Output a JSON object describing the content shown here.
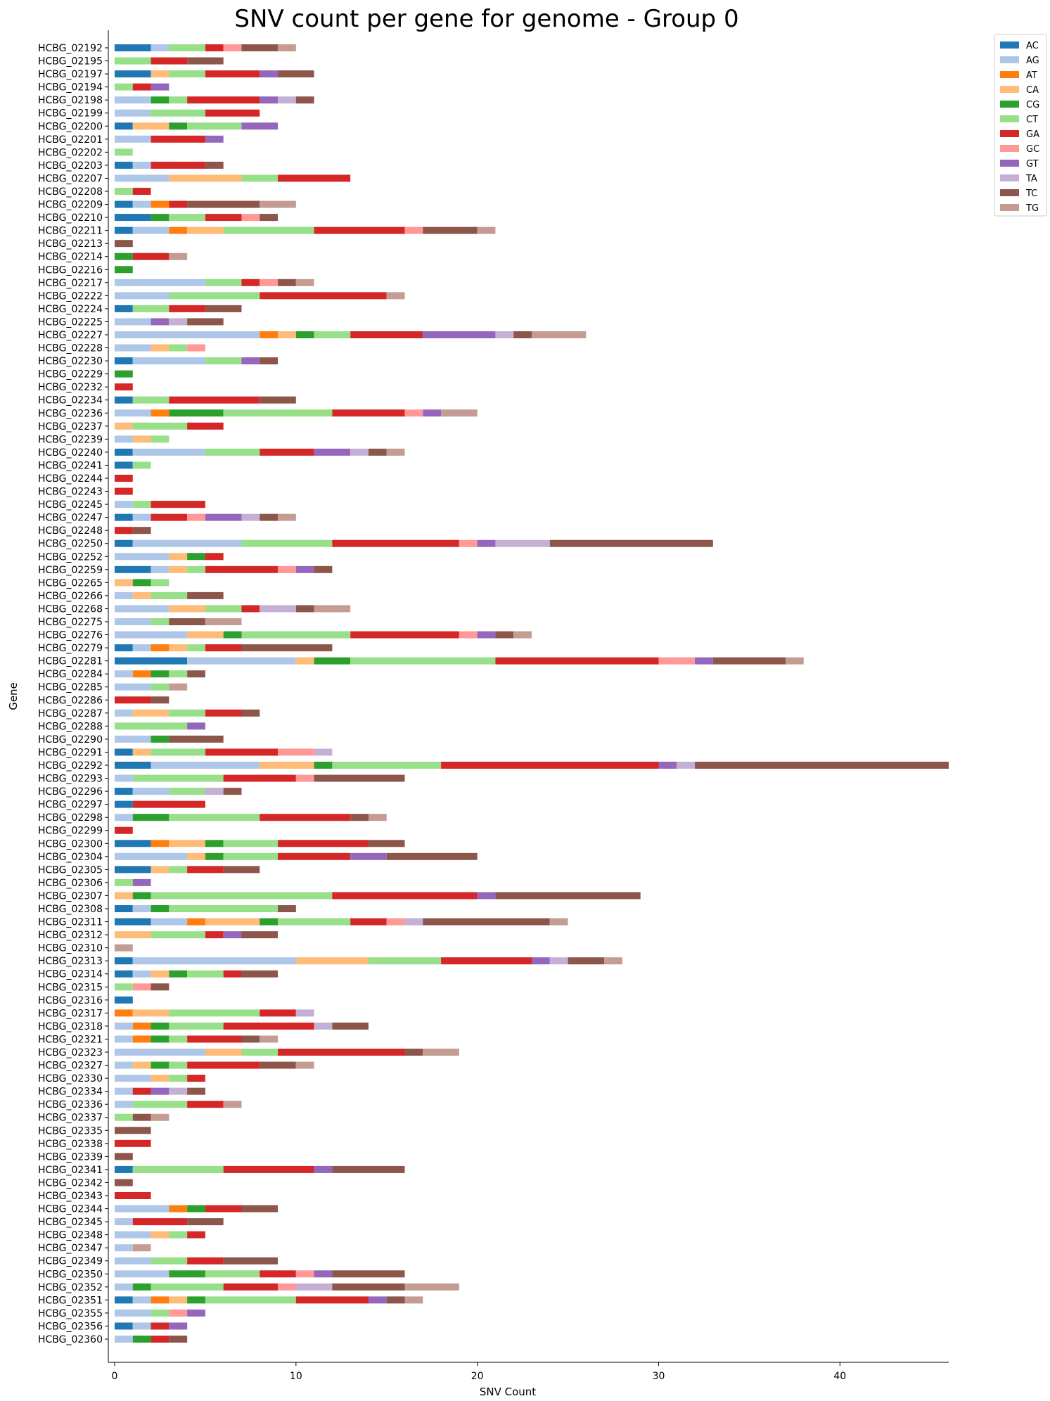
{
  "chart_data": {
    "type": "bar",
    "orientation": "horizontal",
    "stacked": true,
    "title": "SNV count per gene for genome - Group 0",
    "xlabel": "SNV Count",
    "ylabel": "Gene",
    "xlim": [
      0,
      46
    ],
    "xticks": [
      0,
      10,
      20,
      30,
      40
    ],
    "grid": false,
    "legend_position": "top-right",
    "series_names": [
      "AC",
      "AG",
      "AT",
      "CA",
      "CG",
      "CT",
      "GA",
      "GC",
      "GT",
      "TA",
      "TC",
      "TG"
    ],
    "colors": {
      "AC": "#1f77b4",
      "AG": "#aec7e8",
      "AT": "#ff7f0e",
      "CA": "#ffbb78",
      "CG": "#2ca02c",
      "CT": "#98df8a",
      "GA": "#d62728",
      "GC": "#ff9896",
      "GT": "#9467bd",
      "TA": "#c5b0d5",
      "TC": "#8c564b",
      "TG": "#c49c94"
    },
    "genes": [
      {
        "name": "HCBG_02192",
        "AC": 2,
        "AG": 1,
        "CT": 2,
        "GA": 1,
        "GC": 1,
        "TC": 2,
        "TG": 1
      },
      {
        "name": "HCBG_02195",
        "CT": 2,
        "GA": 2,
        "TC": 2
      },
      {
        "name": "HCBG_02197",
        "AC": 2,
        "CA": 1,
        "CT": 2,
        "GA": 3,
        "GT": 1,
        "TC": 2
      },
      {
        "name": "HCBG_02194",
        "CT": 1,
        "GA": 1,
        "GT": 1
      },
      {
        "name": "HCBG_02198",
        "AG": 2,
        "CG": 1,
        "CT": 1,
        "GA": 4,
        "GT": 1,
        "TA": 1,
        "TC": 1
      },
      {
        "name": "HCBG_02199",
        "AG": 2,
        "CT": 3,
        "GA": 3
      },
      {
        "name": "HCBG_02200",
        "AC": 1,
        "CA": 2,
        "CG": 1,
        "CT": 3,
        "GT": 2
      },
      {
        "name": "HCBG_02201",
        "AG": 2,
        "GA": 3,
        "GT": 1
      },
      {
        "name": "HCBG_02202",
        "CT": 1
      },
      {
        "name": "HCBG_02203",
        "AC": 1,
        "AG": 1,
        "GA": 3,
        "TC": 1
      },
      {
        "name": "HCBG_02207",
        "AG": 3,
        "CA": 4,
        "CT": 2,
        "GA": 4
      },
      {
        "name": "HCBG_02208",
        "CT": 1,
        "GA": 1
      },
      {
        "name": "HCBG_02209",
        "AC": 1,
        "AG": 1,
        "AT": 1,
        "GA": 1,
        "TC": 4,
        "TG": 2
      },
      {
        "name": "HCBG_02210",
        "AC": 2,
        "CG": 1,
        "CT": 2,
        "GA": 2,
        "GC": 1,
        "TC": 1
      },
      {
        "name": "HCBG_02211",
        "AC": 1,
        "AG": 2,
        "AT": 1,
        "CA": 2,
        "CT": 5,
        "GA": 5,
        "GC": 1,
        "TC": 3,
        "TG": 1
      },
      {
        "name": "HCBG_02213",
        "TC": 1
      },
      {
        "name": "HCBG_02214",
        "CG": 1,
        "GA": 2,
        "TG": 1
      },
      {
        "name": "HCBG_02216",
        "CG": 1
      },
      {
        "name": "HCBG_02217",
        "AG": 5,
        "CT": 2,
        "GA": 1,
        "GC": 1,
        "TC": 1,
        "TG": 1
      },
      {
        "name": "HCBG_02222",
        "AG": 3,
        "CT": 5,
        "GA": 7,
        "TG": 1
      },
      {
        "name": "HCBG_02224",
        "AC": 1,
        "CT": 2,
        "GA": 2,
        "TC": 2
      },
      {
        "name": "HCBG_02225",
        "AG": 2,
        "GT": 1,
        "TA": 1,
        "TC": 2
      },
      {
        "name": "HCBG_02227",
        "AG": 8,
        "AT": 1,
        "CA": 1,
        "CG": 1,
        "CT": 2,
        "GA": 4,
        "GT": 4,
        "TA": 1,
        "TC": 1,
        "TG": 3
      },
      {
        "name": "HCBG_02228",
        "AG": 2,
        "CA": 1,
        "CT": 1,
        "GC": 1
      },
      {
        "name": "HCBG_02230",
        "AC": 1,
        "AG": 4,
        "CT": 2,
        "GT": 1,
        "TC": 1
      },
      {
        "name": "HCBG_02229",
        "CG": 1
      },
      {
        "name": "HCBG_02232",
        "GA": 1
      },
      {
        "name": "HCBG_02234",
        "AC": 1,
        "CT": 2,
        "GA": 5,
        "TC": 2
      },
      {
        "name": "HCBG_02236",
        "AG": 2,
        "AT": 1,
        "CG": 3,
        "CT": 6,
        "GA": 4,
        "GC": 1,
        "GT": 1,
        "TG": 2
      },
      {
        "name": "HCBG_02237",
        "CA": 1,
        "CT": 3,
        "GA": 2
      },
      {
        "name": "HCBG_02239",
        "AG": 1,
        "CA": 1,
        "CT": 1
      },
      {
        "name": "HCBG_02240",
        "AC": 1,
        "AG": 4,
        "CT": 3,
        "GA": 3,
        "GT": 2,
        "TA": 1,
        "TC": 1,
        "TG": 1
      },
      {
        "name": "HCBG_02241",
        "AC": 1,
        "CT": 1
      },
      {
        "name": "HCBG_02244",
        "GA": 1
      },
      {
        "name": "HCBG_02243",
        "GA": 1
      },
      {
        "name": "HCBG_02245",
        "AG": 1,
        "CT": 1,
        "GA": 3
      },
      {
        "name": "HCBG_02247",
        "AC": 1,
        "AG": 1,
        "GA": 2,
        "GC": 1,
        "GT": 2,
        "TA": 1,
        "TC": 1,
        "TG": 1
      },
      {
        "name": "HCBG_02248",
        "GA": 1,
        "TC": 1
      },
      {
        "name": "HCBG_02250",
        "AC": 1,
        "AG": 6,
        "CT": 5,
        "GA": 7,
        "GC": 1,
        "GT": 1,
        "TA": 3,
        "TC": 9
      },
      {
        "name": "HCBG_02252",
        "AG": 3,
        "CA": 1,
        "CG": 1,
        "GA": 1
      },
      {
        "name": "HCBG_02259",
        "AC": 2,
        "AG": 1,
        "CA": 1,
        "CT": 1,
        "GA": 4,
        "GC": 1,
        "GT": 1,
        "TC": 1
      },
      {
        "name": "HCBG_02265",
        "CA": 1,
        "CG": 1,
        "CT": 1
      },
      {
        "name": "HCBG_02266",
        "AG": 1,
        "CA": 1,
        "CT": 2,
        "TC": 2
      },
      {
        "name": "HCBG_02268",
        "AG": 3,
        "CA": 2,
        "CT": 2,
        "GA": 1,
        "TA": 2,
        "TC": 1,
        "TG": 2
      },
      {
        "name": "HCBG_02275",
        "AG": 2,
        "CT": 1,
        "TC": 2,
        "TG": 2
      },
      {
        "name": "HCBG_02276",
        "AG": 4,
        "CA": 2,
        "CG": 1,
        "CT": 6,
        "GA": 6,
        "GC": 1,
        "GT": 1,
        "TC": 1,
        "TG": 1
      },
      {
        "name": "HCBG_02279",
        "AC": 1,
        "AG": 1,
        "AT": 1,
        "CA": 1,
        "CT": 1,
        "GA": 2,
        "TC": 5
      },
      {
        "name": "HCBG_02281",
        "AC": 4,
        "AG": 6,
        "CA": 1,
        "CG": 2,
        "CT": 8,
        "GA": 9,
        "GC": 2,
        "GT": 1,
        "TC": 4,
        "TG": 1
      },
      {
        "name": "HCBG_02284",
        "AG": 1,
        "AT": 1,
        "CG": 1,
        "CT": 1,
        "TC": 1
      },
      {
        "name": "HCBG_02285",
        "AG": 2,
        "CT": 1,
        "TG": 1
      },
      {
        "name": "HCBG_02286",
        "GA": 2,
        "TC": 1
      },
      {
        "name": "HCBG_02287",
        "AG": 1,
        "CA": 2,
        "CT": 2,
        "GA": 2,
        "TC": 1
      },
      {
        "name": "HCBG_02288",
        "CT": 4,
        "GT": 1
      },
      {
        "name": "HCBG_02290",
        "AG": 2,
        "CG": 1,
        "TC": 3
      },
      {
        "name": "HCBG_02291",
        "AC": 1,
        "CA": 1,
        "CT": 3,
        "GA": 4,
        "GC": 2,
        "TA": 1
      },
      {
        "name": "HCBG_02292",
        "AC": 2,
        "AG": 6,
        "CA": 3,
        "CG": 1,
        "CT": 6,
        "GA": 12,
        "GT": 1,
        "TA": 1,
        "TC": 14
      },
      {
        "name": "HCBG_02293",
        "AG": 1,
        "CT": 5,
        "GA": 4,
        "GC": 1,
        "TC": 5
      },
      {
        "name": "HCBG_02296",
        "AC": 1,
        "AG": 2,
        "CT": 2,
        "TA": 1,
        "TC": 1
      },
      {
        "name": "HCBG_02297",
        "AC": 1,
        "GA": 4
      },
      {
        "name": "HCBG_02298",
        "AG": 1,
        "CG": 2,
        "CT": 5,
        "GA": 5,
        "TC": 1,
        "TG": 1
      },
      {
        "name": "HCBG_02299",
        "GA": 1
      },
      {
        "name": "HCBG_02300",
        "AC": 2,
        "AT": 1,
        "CA": 2,
        "CG": 1,
        "CT": 3,
        "GA": 5,
        "TC": 2
      },
      {
        "name": "HCBG_02304",
        "AG": 4,
        "CA": 1,
        "CG": 1,
        "CT": 3,
        "GA": 4,
        "GT": 2,
        "TC": 5
      },
      {
        "name": "HCBG_02305",
        "AC": 2,
        "CA": 1,
        "CT": 1,
        "GA": 2,
        "TC": 2
      },
      {
        "name": "HCBG_02306",
        "CT": 1,
        "GT": 1
      },
      {
        "name": "HCBG_02307",
        "CA": 1,
        "CG": 1,
        "CT": 10,
        "GA": 8,
        "GT": 1,
        "TC": 8
      },
      {
        "name": "HCBG_02308",
        "AC": 1,
        "AG": 1,
        "CG": 1,
        "CT": 6,
        "TC": 1
      },
      {
        "name": "HCBG_02311",
        "AC": 2,
        "AG": 2,
        "AT": 1,
        "CA": 3,
        "CG": 1,
        "CT": 4,
        "GA": 2,
        "GC": 1,
        "TA": 1,
        "TC": 7,
        "TG": 1
      },
      {
        "name": "HCBG_02312",
        "CA": 2,
        "CT": 3,
        "GA": 1,
        "GT": 1,
        "TC": 2
      },
      {
        "name": "HCBG_02310",
        "TG": 1
      },
      {
        "name": "HCBG_02313",
        "AC": 1,
        "AG": 9,
        "CA": 4,
        "CT": 4,
        "GA": 5,
        "GT": 1,
        "TA": 1,
        "TC": 2,
        "TG": 1
      },
      {
        "name": "HCBG_02314",
        "AC": 1,
        "AG": 1,
        "CA": 1,
        "CG": 1,
        "CT": 2,
        "GA": 1,
        "TC": 2
      },
      {
        "name": "HCBG_02315",
        "CT": 1,
        "GC": 1,
        "TC": 1
      },
      {
        "name": "HCBG_02316",
        "AC": 1
      },
      {
        "name": "HCBG_02317",
        "AT": 1,
        "CA": 2,
        "CT": 5,
        "GA": 2,
        "TA": 1
      },
      {
        "name": "HCBG_02318",
        "AG": 1,
        "AT": 1,
        "CG": 1,
        "CT": 3,
        "GA": 5,
        "TA": 1,
        "TC": 2
      },
      {
        "name": "HCBG_02321",
        "AG": 1,
        "AT": 1,
        "CG": 1,
        "CT": 1,
        "GA": 3,
        "TC": 1,
        "TG": 1
      },
      {
        "name": "HCBG_02323",
        "AG": 5,
        "CA": 2,
        "CT": 2,
        "GA": 7,
        "TC": 1,
        "TG": 2
      },
      {
        "name": "HCBG_02327",
        "AG": 1,
        "CA": 1,
        "CG": 1,
        "CT": 1,
        "GA": 4,
        "TC": 2,
        "TG": 1
      },
      {
        "name": "HCBG_02330",
        "AG": 2,
        "CA": 1,
        "CT": 1,
        "GA": 1
      },
      {
        "name": "HCBG_02334",
        "AG": 1,
        "GA": 1,
        "GT": 1,
        "TA": 1,
        "TC": 1
      },
      {
        "name": "HCBG_02336",
        "AG": 1,
        "CT": 3,
        "GA": 2,
        "TG": 1
      },
      {
        "name": "HCBG_02337",
        "CT": 1,
        "TC": 1,
        "TG": 1
      },
      {
        "name": "HCBG_02335",
        "TC": 2
      },
      {
        "name": "HCBG_02338",
        "GA": 2
      },
      {
        "name": "HCBG_02339",
        "TC": 1
      },
      {
        "name": "HCBG_02341",
        "AC": 1,
        "CT": 5,
        "GA": 5,
        "GT": 1,
        "TC": 4
      },
      {
        "name": "HCBG_02342",
        "TC": 1
      },
      {
        "name": "HCBG_02343",
        "GA": 2
      },
      {
        "name": "HCBG_02344",
        "AG": 3,
        "AT": 1,
        "CG": 1,
        "GA": 2,
        "TC": 2
      },
      {
        "name": "HCBG_02345",
        "AG": 1,
        "GA": 3,
        "TC": 2
      },
      {
        "name": "HCBG_02348",
        "AG": 2,
        "CA": 1,
        "CT": 1,
        "GA": 1
      },
      {
        "name": "HCBG_02347",
        "AG": 1,
        "TG": 1
      },
      {
        "name": "HCBG_02349",
        "AG": 2,
        "CT": 2,
        "GA": 2,
        "TC": 3
      },
      {
        "name": "HCBG_02350",
        "AG": 3,
        "CG": 2,
        "CT": 3,
        "GA": 2,
        "GC": 1,
        "GT": 1,
        "TC": 4
      },
      {
        "name": "HCBG_02352",
        "AG": 1,
        "CG": 1,
        "CT": 4,
        "GA": 3,
        "GC": 1,
        "TA": 2,
        "TC": 4,
        "TG": 3
      },
      {
        "name": "HCBG_02351",
        "AC": 1,
        "AG": 1,
        "AT": 1,
        "CA": 1,
        "CG": 1,
        "CT": 5,
        "GA": 4,
        "GT": 1,
        "TC": 1,
        "TG": 1
      },
      {
        "name": "HCBG_02355",
        "AG": 2,
        "CT": 1,
        "GC": 1,
        "GT": 1
      },
      {
        "name": "HCBG_02356",
        "AC": 1,
        "AG": 1,
        "GA": 1,
        "GT": 1
      },
      {
        "name": "HCBG_02360",
        "AG": 1,
        "CG": 1,
        "GA": 1,
        "TC": 1
      }
    ]
  }
}
